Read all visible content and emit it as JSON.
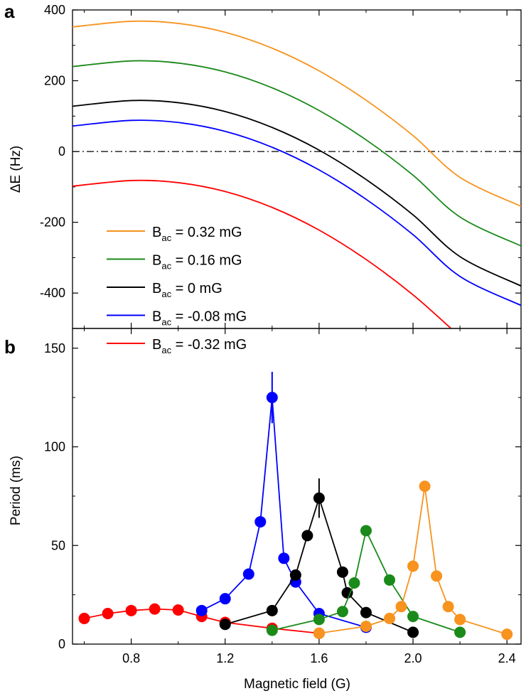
{
  "chart_data": [
    {
      "panel": "a",
      "type": "line",
      "ylabel": "ΔE (Hz)",
      "xlim": [
        0.55,
        2.46
      ],
      "ylim": [
        -500,
        400
      ],
      "yticks": [
        400,
        200,
        0,
        -200,
        -400
      ],
      "xticks": [
        0.8,
        1.2,
        1.6,
        2.0,
        2.4
      ],
      "reference_line": {
        "y": 0,
        "style": "dash-dot",
        "color": "#000000"
      },
      "series": [
        {
          "label_main": "B",
          "label_sub": "ac",
          "label_rest": " = 0.32 mG",
          "color": "#f7931e",
          "x": [
            0.55,
            0.8,
            1.0,
            1.2,
            1.4,
            1.6,
            1.8,
            2.0,
            2.2,
            2.46
          ],
          "y": [
            352,
            368,
            362,
            337,
            292,
            228,
            145,
            45,
            -73,
            -155
          ]
        },
        {
          "label_main": "B",
          "label_sub": "ac",
          "label_rest": " = 0.16 mG",
          "color": "#1a8a1a",
          "x": [
            0.55,
            0.8,
            1.0,
            1.2,
            1.4,
            1.6,
            1.8,
            2.0,
            2.2,
            2.46
          ],
          "y": [
            240,
            256,
            250,
            225,
            180,
            116,
            33,
            -67,
            -185,
            -267
          ]
        },
        {
          "label_main": "B",
          "label_sub": "ac",
          "label_rest": " = 0 mG",
          "color": "#000000",
          "x": [
            0.55,
            0.8,
            1.0,
            1.2,
            1.4,
            1.6,
            1.8,
            2.0,
            2.2,
            2.46
          ],
          "y": [
            128,
            144,
            138,
            113,
            68,
            4,
            -79,
            -179,
            -297,
            -380
          ]
        },
        {
          "label_main": "B",
          "label_sub": "ac",
          "label_rest": " = -0.08 mG",
          "color": "#0000ff",
          "x": [
            0.55,
            0.8,
            1.0,
            1.2,
            1.4,
            1.6,
            1.8,
            2.0,
            2.2,
            2.46
          ],
          "y": [
            72,
            88,
            82,
            57,
            12,
            -52,
            -135,
            -235,
            -353,
            -435
          ]
        },
        {
          "label_main": "B",
          "label_sub": "ac",
          "label_rest": " = -0.32 mG",
          "color": "#ff0000",
          "x": [
            0.55,
            0.8,
            1.0,
            1.2,
            1.4,
            1.6,
            1.8,
            2.0,
            2.2,
            2.28
          ],
          "y": [
            -98,
            -82,
            -88,
            -113,
            -158,
            -222,
            -305,
            -405,
            -523,
            -570
          ]
        }
      ]
    },
    {
      "panel": "b",
      "type": "line",
      "xlabel": "Magnetic field (G)",
      "ylabel": "Period (ms)",
      "xlim": [
        0.55,
        2.46
      ],
      "ylim": [
        0,
        160
      ],
      "yticks": [
        0,
        50,
        100,
        150
      ],
      "xticks": [
        0.8,
        1.2,
        1.6,
        2.0,
        2.4
      ],
      "xtick_labels": [
        "0.8",
        "1.2",
        "1.6",
        "2.0",
        "2.4"
      ],
      "series": [
        {
          "color": "#ff0000",
          "x": [
            0.6,
            0.7,
            0.8,
            0.9,
            1.0,
            1.1,
            1.2,
            1.4,
            1.6
          ],
          "y": [
            13,
            15.5,
            17,
            17.8,
            17.3,
            14,
            11,
            8,
            5.5
          ]
        },
        {
          "color": "#0000ff",
          "x": [
            1.1,
            1.2,
            1.3,
            1.35,
            1.4,
            1.45,
            1.5,
            1.6,
            1.8
          ],
          "y": [
            17,
            23,
            35.5,
            62,
            125,
            43.5,
            31.5,
            15.5,
            8.5
          ],
          "errorbars": [
            {
              "x": 1.4,
              "low": 112,
              "high": 138
            }
          ]
        },
        {
          "color": "#000000",
          "x": [
            1.2,
            1.4,
            1.5,
            1.55,
            1.6,
            1.7,
            1.72,
            1.8,
            2.0
          ],
          "y": [
            10,
            17,
            35,
            55,
            74,
            36.5,
            26,
            16,
            6
          ],
          "errorbars": [
            {
              "x": 1.6,
              "low": 64,
              "high": 84
            }
          ]
        },
        {
          "color": "#1a8a1a",
          "x": [
            1.4,
            1.6,
            1.7,
            1.75,
            1.8,
            1.9,
            2.0,
            2.2
          ],
          "y": [
            7,
            12.5,
            16.5,
            31,
            57.5,
            32.5,
            14,
            6
          ]
        },
        {
          "color": "#f7931e",
          "x": [
            1.6,
            1.8,
            1.9,
            1.95,
            2.0,
            2.05,
            2.1,
            2.15,
            2.2,
            2.4
          ],
          "y": [
            5.5,
            9,
            13,
            19,
            39.5,
            80,
            34.5,
            19,
            12.5,
            5
          ]
        }
      ]
    }
  ]
}
